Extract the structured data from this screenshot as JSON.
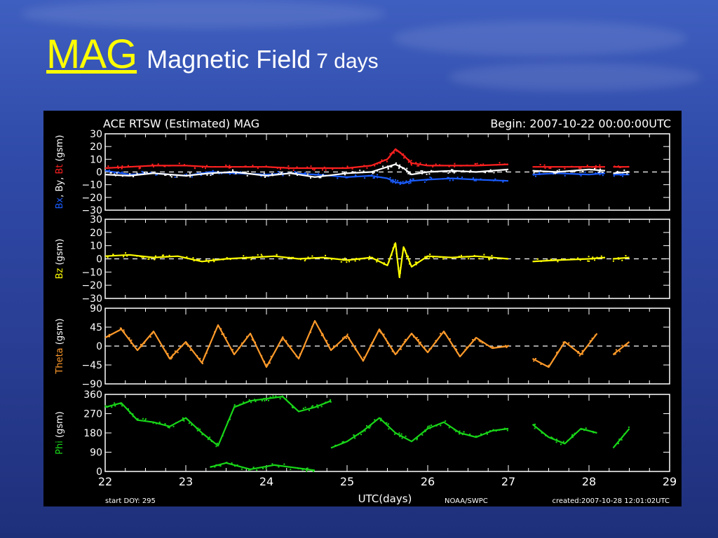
{
  "slide": {
    "title_link": "MAG",
    "title_main": "Magnetic Field",
    "title_span": "7 days"
  },
  "chart_data": {
    "type": "scatter",
    "title": "ACE RTSW (Estimated) MAG",
    "begin_label": "Begin: 2007-10-22 00:00:00UTC",
    "xlabel": "UTC(days)",
    "x_ticks": [
      "22",
      "23",
      "24",
      "25",
      "26",
      "27",
      "28",
      "29"
    ],
    "xlim": [
      22,
      29
    ],
    "footer_left": "start DOY:  295",
    "footer_mid": "NOAA/SWPC",
    "footer_right": "created:2007-10-28 12:01:02UTC",
    "colors": {
      "bx": "#1a5cff",
      "by": "#ffffff",
      "bt": "#ff2020",
      "bz": "#ffff00",
      "theta": "#ff9a2a",
      "phi": "#19d619",
      "axis": "#ffffff",
      "bg": "#000000"
    },
    "panels": [
      {
        "id": "b-components",
        "ylabel_parts": [
          {
            "text": "Bx",
            "color": "#1a5cff"
          },
          {
            "text": ",",
            "color": "#ffffff"
          },
          {
            "text": "By",
            "color": "#ffffff"
          },
          {
            "text": ",",
            "color": "#ffffff"
          },
          {
            "text": "Bt",
            "color": "#ff2020"
          },
          {
            "text": "(gsm)",
            "color": "#ffffff"
          }
        ],
        "ylim": [
          -30,
          30
        ],
        "yticks": [
          "30",
          "20",
          "10",
          "0",
          "−10",
          "−20",
          "−30"
        ],
        "dashed_zero": true,
        "series": [
          {
            "name": "Bt",
            "color": "#ff2020",
            "segments": [
              {
                "x": [
                  22,
                  22.3,
                  22.6,
                  23,
                  23.3,
                  23.6,
                  24,
                  24.3,
                  24.6,
                  25,
                  25.3,
                  25.5,
                  25.6,
                  25.7,
                  25.8,
                  26,
                  26.3,
                  26.6,
                  27
                ],
                "y": [
                  3,
                  4,
                  5,
                  5,
                  4,
                  4,
                  4,
                  3,
                  3,
                  3,
                  5,
                  10,
                  18,
                  13,
                  7,
                  5,
                  5,
                  5,
                  6
                ]
              },
              {
                "x": [
                  27.3,
                  27.6,
                  28,
                  28.2
                ],
                "y": [
                  4,
                  4,
                  4,
                  4
                ]
              },
              {
                "x": [
                  28.3,
                  28.5
                ],
                "y": [
                  4,
                  4
                ]
              }
            ]
          },
          {
            "name": "Bx",
            "color": "#1a5cff",
            "segments": [
              {
                "x": [
                  22,
                  22.3,
                  22.6,
                  23,
                  23.3,
                  23.6,
                  24,
                  24.3,
                  24.6,
                  25,
                  25.3,
                  25.5,
                  25.6,
                  25.7,
                  25.8,
                  26,
                  26.3,
                  26.6,
                  27
                ],
                "y": [
                  1,
                  -2,
                  -1,
                  -3,
                  0,
                  -1,
                  -2,
                  -1,
                  -2,
                  -4,
                  -3,
                  -5,
                  -8,
                  -9,
                  -7,
                  -6,
                  -5,
                  -6,
                  -7
                ]
              },
              {
                "x": [
                  27.3,
                  27.6,
                  28,
                  28.2
                ],
                "y": [
                  -2,
                  -1,
                  -2,
                  -1
                ]
              },
              {
                "x": [
                  28.3,
                  28.5
                ],
                "y": [
                  -2,
                  -2
                ]
              }
            ]
          },
          {
            "name": "By",
            "color": "#ffffff",
            "segments": [
              {
                "x": [
                  22,
                  22.3,
                  22.6,
                  23,
                  23.3,
                  23.6,
                  24,
                  24.3,
                  24.6,
                  25,
                  25.3,
                  25.5,
                  25.6,
                  25.7,
                  25.8,
                  26,
                  26.3,
                  26.6,
                  27
                ],
                "y": [
                  -2,
                  -3,
                  -1,
                  -3,
                  -1,
                  0,
                  -3,
                  -1,
                  -4,
                  -1,
                  0,
                  4,
                  6,
                  3,
                  -2,
                  0,
                  1,
                  0,
                  2
                ]
              },
              {
                "x": [
                  27.3,
                  27.6,
                  28,
                  28.2
                ],
                "y": [
                  1,
                  0,
                  2,
                  1
                ]
              },
              {
                "x": [
                  28.3,
                  28.5
                ],
                "y": [
                  -1,
                  0
                ]
              }
            ]
          }
        ]
      },
      {
        "id": "bz",
        "ylabel_parts": [
          {
            "text": "Bz",
            "color": "#ffff00"
          },
          {
            "text": "(gsm)",
            "color": "#ffffff"
          }
        ],
        "ylim": [
          -30,
          30
        ],
        "yticks": [
          "30",
          "20",
          "10",
          "0",
          "−10",
          "−20",
          "−30"
        ],
        "dashed_zero": true,
        "series": [
          {
            "name": "Bz",
            "color": "#ffff00",
            "segments": [
              {
                "x": [
                  22,
                  22.3,
                  22.6,
                  22.9,
                  23.2,
                  23.5,
                  23.8,
                  24.1,
                  24.4,
                  24.7,
                  25,
                  25.3,
                  25.5,
                  25.6,
                  25.65,
                  25.7,
                  25.8,
                  26,
                  26.3,
                  26.6,
                  27
                ],
                "y": [
                  2,
                  3,
                  1,
                  2,
                  -2,
                  0,
                  1,
                  2,
                  0,
                  1,
                  -1,
                  1,
                  -5,
                  12,
                  -14,
                  9,
                  -6,
                  2,
                  1,
                  2,
                  0
                ]
              },
              {
                "x": [
                  27.3,
                  27.6,
                  28,
                  28.2
                ],
                "y": [
                  -2,
                  -1,
                  0,
                  1
                ]
              },
              {
                "x": [
                  28.3,
                  28.5
                ],
                "y": [
                  0,
                  1
                ]
              }
            ]
          }
        ]
      },
      {
        "id": "theta",
        "ylabel_parts": [
          {
            "text": "Theta",
            "color": "#ff9a2a"
          },
          {
            "text": "(gsm)",
            "color": "#ffffff"
          }
        ],
        "ylim": [
          -90,
          90
        ],
        "yticks": [
          "90",
          "45",
          "0",
          "−45",
          "−90"
        ],
        "dashed_zero": true,
        "series": [
          {
            "name": "Theta",
            "color": "#ff9a2a",
            "segments": [
              {
                "x": [
                  22,
                  22.2,
                  22.4,
                  22.6,
                  22.8,
                  23,
                  23.2,
                  23.4,
                  23.6,
                  23.8,
                  24,
                  24.2,
                  24.4,
                  24.6,
                  24.8,
                  25,
                  25.2,
                  25.4,
                  25.6,
                  25.8,
                  26,
                  26.2,
                  26.4,
                  26.6,
                  26.8,
                  27
                ],
                "y": [
                  20,
                  40,
                  -10,
                  35,
                  -30,
                  10,
                  -40,
                  50,
                  -20,
                  30,
                  -50,
                  20,
                  -30,
                  60,
                  -10,
                  25,
                  -35,
                  40,
                  -20,
                  30,
                  -15,
                  35,
                  -25,
                  20,
                  -5,
                  0
                ]
              },
              {
                "x": [
                  27.3,
                  27.5,
                  27.7,
                  27.9,
                  28.1
                ],
                "y": [
                  -30,
                  -50,
                  10,
                  -20,
                  30
                ]
              },
              {
                "x": [
                  28.3,
                  28.5
                ],
                "y": [
                  -20,
                  10
                ]
              }
            ]
          }
        ]
      },
      {
        "id": "phi",
        "ylabel_parts": [
          {
            "text": "Phi",
            "color": "#19d619"
          },
          {
            "text": "(gsm)",
            "color": "#ffffff"
          }
        ],
        "ylim": [
          0,
          360
        ],
        "yticks": [
          "360",
          "270",
          "180",
          "90",
          "0"
        ],
        "dashed_zero": false,
        "series": [
          {
            "name": "Phi",
            "color": "#19d619",
            "segments": [
              {
                "x": [
                  22,
                  22.2,
                  22.4,
                  22.6,
                  22.8,
                  23,
                  23.2,
                  23.4,
                  23.6,
                  23.8,
                  24,
                  24.2,
                  24.4,
                  24.6,
                  24.8
                ],
                "y": [
                  300,
                  320,
                  240,
                  230,
                  210,
                  250,
                  180,
                  120,
                  300,
                  330,
                  340,
                  350,
                  280,
                  300,
                  330
                ]
              },
              {
                "x": [
                  23.3,
                  23.5,
                  23.8,
                  24.1,
                  24.4,
                  24.6
                ],
                "y": [
                  20,
                  40,
                  10,
                  30,
                  15,
                  5
                ]
              },
              {
                "x": [
                  24.8,
                  25,
                  25.2,
                  25.4,
                  25.6,
                  25.8,
                  26,
                  26.2,
                  26.4,
                  26.6,
                  26.8,
                  27
                ],
                "y": [
                  110,
                  140,
                  190,
                  250,
                  180,
                  140,
                  200,
                  230,
                  180,
                  160,
                  190,
                  200
                ]
              },
              {
                "x": [
                  27.3,
                  27.5,
                  27.7,
                  27.9,
                  28.1
                ],
                "y": [
                  220,
                  160,
                  130,
                  200,
                  180
                ]
              },
              {
                "x": [
                  28.3,
                  28.5
                ],
                "y": [
                  110,
                  200
                ]
              }
            ]
          }
        ]
      }
    ]
  }
}
